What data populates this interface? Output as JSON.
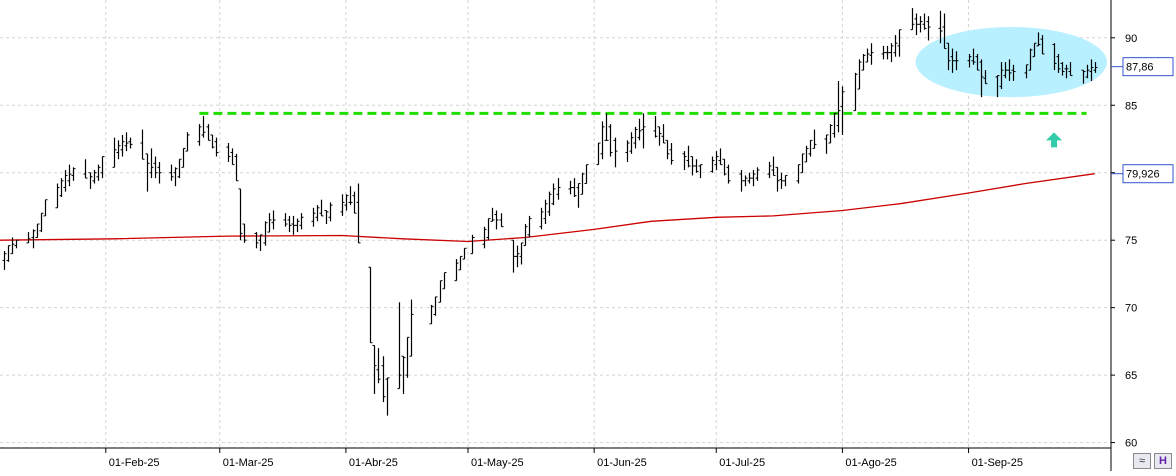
{
  "chart_data": {
    "type": "ohlc",
    "title": "",
    "xlabel": "",
    "ylabel": "",
    "ylim": [
      59.6,
      92.8
    ],
    "grid": true,
    "y_ticks": [
      60,
      65,
      70,
      75,
      80,
      85,
      90
    ],
    "x_ticks": [
      {
        "label": "01-Feb-25",
        "date": "2025-02-01"
      },
      {
        "label": "01-Mar-25",
        "date": "2025-03-01"
      },
      {
        "label": "01-Abr-25",
        "date": "2025-04-01"
      },
      {
        "label": "01-May-25",
        "date": "2025-05-01"
      },
      {
        "label": "01-Jun-25",
        "date": "2025-06-01"
      },
      {
        "label": "01-Jul-25",
        "date": "2025-07-01"
      },
      {
        "label": "01-Ago-25",
        "date": "2025-08-01"
      },
      {
        "label": "01-Sep-25",
        "date": "2025-09-01"
      }
    ],
    "price_series": {
      "last_value_label": "87,86",
      "color": "#000000",
      "bars": [
        [
          "2025-01-07",
          72.8,
          74.2
        ],
        [
          "2025-01-08",
          73.4,
          74.6
        ],
        [
          "2025-01-09",
          74.0,
          75.2
        ],
        [
          "2025-01-10",
          74.4,
          75.0
        ],
        [
          "2025-01-13",
          74.8,
          75.6
        ],
        [
          "2025-01-14",
          74.4,
          75.8
        ],
        [
          "2025-01-15",
          75.2,
          76.2
        ],
        [
          "2025-01-16",
          75.6,
          77.0
        ],
        [
          "2025-01-17",
          76.8,
          78.0
        ],
        [
          "2025-01-20",
          77.4,
          79.2
        ],
        [
          "2025-01-21",
          78.2,
          79.6
        ],
        [
          "2025-01-22",
          78.6,
          80.2
        ],
        [
          "2025-01-23",
          79.0,
          80.6
        ],
        [
          "2025-01-24",
          79.4,
          80.4
        ],
        [
          "2025-01-27",
          79.6,
          81.0
        ],
        [
          "2025-01-28",
          78.8,
          80.0
        ],
        [
          "2025-01-29",
          79.2,
          80.2
        ],
        [
          "2025-01-30",
          79.4,
          80.6
        ],
        [
          "2025-01-31",
          79.6,
          81.2
        ],
        [
          "2025-02-03",
          80.4,
          82.6
        ],
        [
          "2025-02-04",
          81.0,
          82.4
        ],
        [
          "2025-02-05",
          81.2,
          82.8
        ],
        [
          "2025-02-06",
          81.6,
          83.0
        ],
        [
          "2025-02-07",
          81.8,
          82.6
        ],
        [
          "2025-02-10",
          81.0,
          83.2
        ],
        [
          "2025-02-11",
          78.6,
          81.4
        ],
        [
          "2025-02-12",
          79.6,
          81.8
        ],
        [
          "2025-02-13",
          79.6,
          81.2
        ],
        [
          "2025-02-14",
          79.2,
          80.8
        ],
        [
          "2025-02-17",
          79.4,
          80.6
        ],
        [
          "2025-02-18",
          79.0,
          80.4
        ],
        [
          "2025-02-19",
          79.6,
          81.0
        ],
        [
          "2025-02-20",
          80.4,
          81.8
        ],
        [
          "2025-02-21",
          81.6,
          83.0
        ],
        [
          "2025-02-24",
          82.0,
          83.6
        ],
        [
          "2025-02-25",
          82.6,
          84.2
        ],
        [
          "2025-02-26",
          82.4,
          83.6
        ],
        [
          "2025-02-27",
          81.8,
          82.8
        ],
        [
          "2025-02-28",
          81.2,
          82.6
        ],
        [
          "2025-03-03",
          80.8,
          82.2
        ],
        [
          "2025-03-04",
          80.6,
          81.8
        ],
        [
          "2025-03-05",
          79.4,
          81.4
        ],
        [
          "2025-03-06",
          75.0,
          78.8
        ],
        [
          "2025-03-07",
          74.8,
          76.2
        ],
        [
          "2025-03-10",
          74.4,
          75.6
        ],
        [
          "2025-03-11",
          74.2,
          75.4
        ],
        [
          "2025-03-12",
          74.6,
          76.4
        ],
        [
          "2025-03-13",
          75.6,
          77.0
        ],
        [
          "2025-03-14",
          75.8,
          77.2
        ],
        [
          "2025-03-17",
          76.0,
          77.0
        ],
        [
          "2025-03-18",
          75.6,
          76.8
        ],
        [
          "2025-03-19",
          75.4,
          76.8
        ],
        [
          "2025-03-20",
          75.6,
          76.6
        ],
        [
          "2025-03-21",
          75.8,
          77.0
        ],
        [
          "2025-03-24",
          76.0,
          77.4
        ],
        [
          "2025-03-25",
          76.4,
          77.6
        ],
        [
          "2025-03-26",
          76.8,
          78.0
        ],
        [
          "2025-03-27",
          76.2,
          77.2
        ],
        [
          "2025-03-28",
          76.4,
          77.8
        ],
        [
          "2025-03-31",
          76.8,
          78.4
        ],
        [
          "2025-04-01",
          77.2,
          78.4
        ],
        [
          "2025-04-02",
          77.6,
          79.0
        ],
        [
          "2025-04-03",
          77.0,
          78.6
        ],
        [
          "2025-04-04",
          74.8,
          79.2
        ],
        [
          "2025-04-07",
          67.4,
          73.0
        ],
        [
          "2025-04-08",
          63.6,
          67.2
        ],
        [
          "2025-04-09",
          64.4,
          67.0
        ],
        [
          "2025-04-10",
          63.0,
          66.4
        ],
        [
          "2025-04-11",
          62.0,
          64.8
        ],
        [
          "2025-04-14",
          64.0,
          70.4
        ],
        [
          "2025-04-15",
          63.6,
          66.4
        ],
        [
          "2025-04-16",
          64.8,
          67.8
        ],
        [
          "2025-04-17",
          66.4,
          70.6
        ],
        [
          "2025-04-22",
          68.8,
          70.2
        ],
        [
          "2025-04-23",
          69.4,
          70.8
        ],
        [
          "2025-04-24",
          70.4,
          72.0
        ],
        [
          "2025-04-25",
          71.4,
          72.6
        ],
        [
          "2025-04-28",
          72.0,
          73.6
        ],
        [
          "2025-04-29",
          72.8,
          73.8
        ],
        [
          "2025-04-30",
          73.6,
          74.4
        ],
        [
          "2025-05-02",
          74.0,
          75.4
        ],
        [
          "2025-05-05",
          74.4,
          76.0
        ],
        [
          "2025-05-06",
          75.0,
          76.6
        ],
        [
          "2025-05-07",
          76.4,
          77.4
        ],
        [
          "2025-05-08",
          75.8,
          77.2
        ],
        [
          "2025-05-09",
          76.0,
          77.0
        ],
        [
          "2025-05-12",
          72.6,
          75.0
        ],
        [
          "2025-05-13",
          73.0,
          74.6
        ],
        [
          "2025-05-14",
          73.2,
          74.8
        ],
        [
          "2025-05-15",
          74.6,
          76.2
        ],
        [
          "2025-05-16",
          75.2,
          76.8
        ],
        [
          "2025-05-19",
          75.8,
          77.4
        ],
        [
          "2025-05-20",
          76.2,
          78.0
        ],
        [
          "2025-05-21",
          76.8,
          78.6
        ],
        [
          "2025-05-22",
          77.6,
          79.2
        ],
        [
          "2025-05-23",
          78.0,
          79.6
        ],
        [
          "2025-05-26",
          78.4,
          79.4
        ],
        [
          "2025-05-27",
          78.2,
          79.6
        ],
        [
          "2025-05-28",
          77.4,
          79.2
        ],
        [
          "2025-05-29",
          78.4,
          80.0
        ],
        [
          "2025-05-30",
          79.2,
          80.6
        ],
        [
          "2025-06-02",
          80.6,
          82.2
        ],
        [
          "2025-06-03",
          81.0,
          83.8
        ],
        [
          "2025-06-04",
          82.4,
          84.4
        ],
        [
          "2025-06-05",
          81.2,
          83.6
        ],
        [
          "2025-06-06",
          80.4,
          82.6
        ],
        [
          "2025-06-09",
          80.8,
          82.4
        ],
        [
          "2025-06-10",
          81.4,
          83.0
        ],
        [
          "2025-06-11",
          81.8,
          83.4
        ],
        [
          "2025-06-12",
          82.4,
          84.0
        ],
        [
          "2025-06-13",
          81.8,
          84.4
        ],
        [
          "2025-06-16",
          82.6,
          84.2
        ],
        [
          "2025-06-17",
          82.0,
          83.4
        ],
        [
          "2025-06-18",
          82.2,
          83.6
        ],
        [
          "2025-06-19",
          81.0,
          82.4
        ],
        [
          "2025-06-20",
          80.6,
          82.2
        ],
        [
          "2025-06-23",
          80.2,
          81.6
        ],
        [
          "2025-06-24",
          80.4,
          82.0
        ],
        [
          "2025-06-25",
          79.8,
          81.2
        ],
        [
          "2025-06-26",
          80.0,
          81.0
        ],
        [
          "2025-06-27",
          79.6,
          80.6
        ],
        [
          "2025-06-30",
          80.0,
          81.2
        ],
        [
          "2025-07-01",
          80.2,
          81.6
        ],
        [
          "2025-07-02",
          80.6,
          81.8
        ],
        [
          "2025-07-03",
          79.8,
          81.0
        ],
        [
          "2025-07-04",
          79.2,
          80.6
        ],
        [
          "2025-07-07",
          78.6,
          80.2
        ],
        [
          "2025-07-08",
          79.0,
          79.8
        ],
        [
          "2025-07-09",
          79.2,
          80.0
        ],
        [
          "2025-07-10",
          79.0,
          80.2
        ],
        [
          "2025-07-11",
          79.4,
          80.4
        ],
        [
          "2025-07-14",
          79.6,
          80.8
        ],
        [
          "2025-07-15",
          79.8,
          81.2
        ],
        [
          "2025-07-16",
          78.6,
          80.4
        ],
        [
          "2025-07-17",
          78.8,
          80.0
        ],
        [
          "2025-07-18",
          79.0,
          79.8
        ],
        [
          "2025-07-21",
          79.2,
          80.6
        ],
        [
          "2025-07-22",
          80.0,
          81.4
        ],
        [
          "2025-07-23",
          80.8,
          82.0
        ],
        [
          "2025-07-24",
          81.2,
          82.4
        ],
        [
          "2025-07-25",
          81.8,
          83.2
        ],
        [
          "2025-07-28",
          81.4,
          82.8
        ],
        [
          "2025-07-29",
          82.2,
          83.6
        ],
        [
          "2025-07-30",
          82.6,
          84.4
        ],
        [
          "2025-07-31",
          83.0,
          86.8
        ],
        [
          "2025-08-01",
          82.8,
          86.4
        ],
        [
          "2025-08-04",
          84.6,
          87.4
        ],
        [
          "2025-08-05",
          86.2,
          88.4
        ],
        [
          "2025-08-06",
          87.6,
          88.8
        ],
        [
          "2025-08-07",
          88.2,
          89.2
        ],
        [
          "2025-08-08",
          88.0,
          89.6
        ],
        [
          "2025-08-11",
          88.4,
          89.4
        ],
        [
          "2025-08-12",
          88.4,
          89.4
        ],
        [
          "2025-08-13",
          88.2,
          89.6
        ],
        [
          "2025-08-14",
          88.6,
          90.2
        ],
        [
          "2025-08-15",
          88.6,
          90.6
        ],
        [
          "2025-08-18",
          90.6,
          92.2
        ],
        [
          "2025-08-19",
          90.2,
          91.8
        ],
        [
          "2025-08-20",
          90.4,
          91.6
        ],
        [
          "2025-08-21",
          90.6,
          91.8
        ],
        [
          "2025-08-22",
          89.8,
          91.6
        ],
        [
          "2025-08-25",
          89.6,
          92.0
        ],
        [
          "2025-08-26",
          89.2,
          91.8
        ],
        [
          "2025-08-27",
          87.6,
          89.6
        ],
        [
          "2025-08-28",
          87.4,
          89.2
        ],
        [
          "2025-08-29",
          87.6,
          89.0
        ],
        [
          "2025-09-01",
          87.8,
          88.8
        ],
        [
          "2025-09-02",
          88.0,
          89.2
        ],
        [
          "2025-09-03",
          87.6,
          88.8
        ],
        [
          "2025-09-04",
          85.6,
          88.4
        ],
        [
          "2025-09-05",
          86.6,
          87.6
        ],
        [
          "2025-09-08",
          85.6,
          87.2
        ],
        [
          "2025-09-09",
          86.2,
          88.2
        ],
        [
          "2025-09-10",
          87.0,
          88.2
        ],
        [
          "2025-09-11",
          86.8,
          88.4
        ],
        [
          "2025-09-12",
          86.8,
          88.0
        ],
        [
          "2025-09-15",
          87.0,
          88.0
        ],
        [
          "2025-09-16",
          87.6,
          89.2
        ],
        [
          "2025-09-17",
          88.6,
          89.6
        ],
        [
          "2025-09-18",
          89.4,
          90.4
        ],
        [
          "2025-09-19",
          88.8,
          90.2
        ],
        [
          "2025-09-22",
          87.6,
          89.6
        ],
        [
          "2025-09-23",
          87.4,
          88.8
        ],
        [
          "2025-09-24",
          87.2,
          88.2
        ],
        [
          "2025-09-25",
          87.0,
          88.0
        ],
        [
          "2025-09-26",
          87.2,
          88.2
        ],
        [
          "2025-09-29",
          86.6,
          87.6
        ],
        [
          "2025-09-30",
          87.0,
          88.0
        ],
        [
          "2025-10-01",
          86.8,
          88.4
        ],
        [
          "2025-10-02",
          87.4,
          88.2
        ]
      ]
    },
    "moving_average": {
      "last_value_label": "79,926",
      "color": "#cc0000",
      "points": [
        [
          "2025-01-06",
          75.0
        ],
        [
          "2025-02-03",
          75.1
        ],
        [
          "2025-03-03",
          75.3
        ],
        [
          "2025-03-31",
          75.35
        ],
        [
          "2025-04-15",
          75.1
        ],
        [
          "2025-05-01",
          74.9
        ],
        [
          "2025-05-15",
          75.2
        ],
        [
          "2025-06-01",
          75.8
        ],
        [
          "2025-06-15",
          76.4
        ],
        [
          "2025-07-01",
          76.7
        ],
        [
          "2025-07-15",
          76.8
        ],
        [
          "2025-08-01",
          77.2
        ],
        [
          "2025-08-15",
          77.7
        ],
        [
          "2025-09-01",
          78.5
        ],
        [
          "2025-09-15",
          79.2
        ],
        [
          "2025-10-02",
          79.926
        ]
      ]
    },
    "annotations": {
      "resistance_level": 84.4,
      "resistance_color": "#22dd00",
      "ellipse_color": "#b8f0ff",
      "ellipse_range": {
        "x": [
          "2025-08-19",
          "2025-10-05"
        ],
        "y": [
          85.6,
          90.8
        ]
      },
      "arrow_color": "#33ccaa",
      "arrow_at": {
        "date": "2025-09-22",
        "value": 82.4
      },
      "arrow_direction": "up"
    },
    "colors": {
      "grid": "#d4d4d4",
      "axis": "#000000",
      "price_box_border": "#3355cc",
      "price_box_fill": "#ffffff"
    }
  },
  "ui": {
    "corner_icons": [
      "zoom-icon",
      "history-icon"
    ],
    "corner_glyphs": [
      "≈",
      "H"
    ]
  }
}
